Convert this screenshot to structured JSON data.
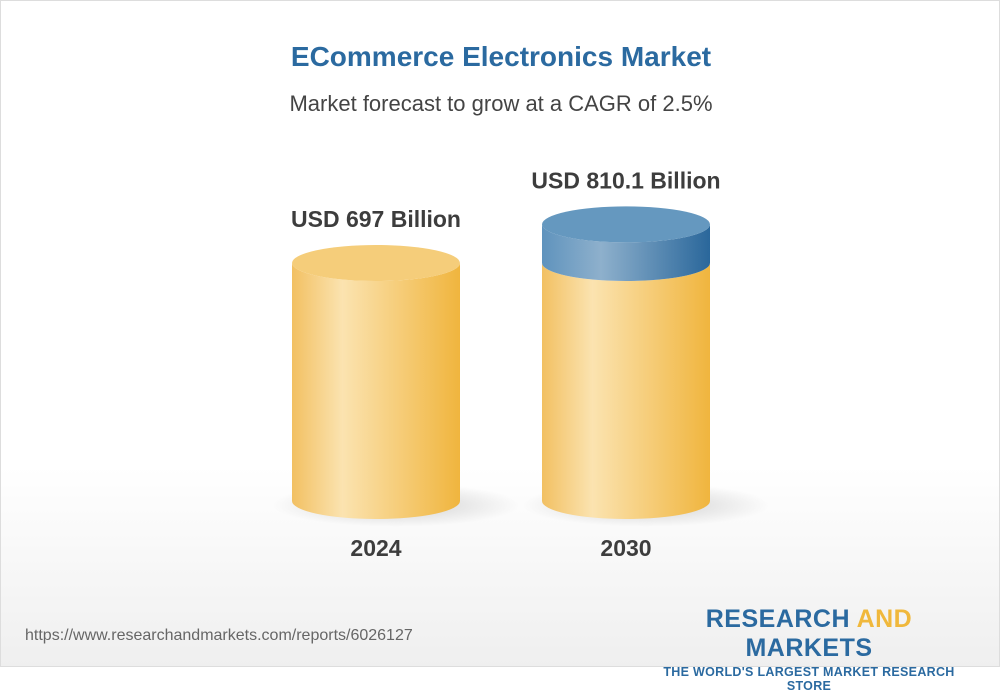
{
  "title": "ECommerce Electronics Market",
  "subtitle": "Market forecast to grow at a CAGR of 2.5%",
  "chart_data": {
    "type": "bar",
    "style": "3d-cylinder",
    "categories": [
      "2024",
      "2030"
    ],
    "values": [
      697,
      810.1
    ],
    "data_labels": [
      "USD 697 Billion",
      "USD 810.1 Billion"
    ],
    "unit": "USD Billion",
    "colors": {
      "base": "#f3c05a",
      "growth": "#3f7fb0"
    },
    "grid": false
  },
  "footer": {
    "url": "https://www.researchandmarkets.com/reports/6026127",
    "logo_part1": "RESEARCH ",
    "logo_part2": "AND",
    "logo_part3": " MARKETS",
    "tagline": "THE WORLD'S LARGEST MARKET RESEARCH STORE"
  }
}
